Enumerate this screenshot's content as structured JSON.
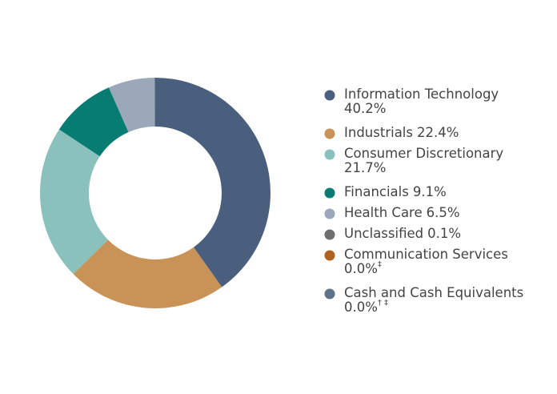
{
  "chart_data": {
    "type": "donut",
    "categories": [
      "Information Technology",
      "Industrials",
      "Consumer Discretionary",
      "Financials",
      "Health Care",
      "Unclassified",
      "Communication Services",
      "Cash and Cash Equivalents"
    ],
    "values": [
      40.2,
      22.4,
      21.7,
      9.1,
      6.5,
      0.1,
      0.0,
      0.0
    ],
    "value_labels": [
      "40.2%",
      "22.4%",
      "21.7%",
      "9.1%",
      "6.5%",
      "0.1%",
      "0.0%",
      "0.0%"
    ],
    "footnote_markers": [
      null,
      null,
      null,
      null,
      null,
      null,
      "‡",
      "† ‡"
    ],
    "colors": [
      "#4a5f7e",
      "#c99358",
      "#8bc1bc",
      "#067c72",
      "#9ba8ba",
      "#6e6e6e",
      "#b0601f",
      "#5f7189"
    ],
    "legend": "right"
  }
}
